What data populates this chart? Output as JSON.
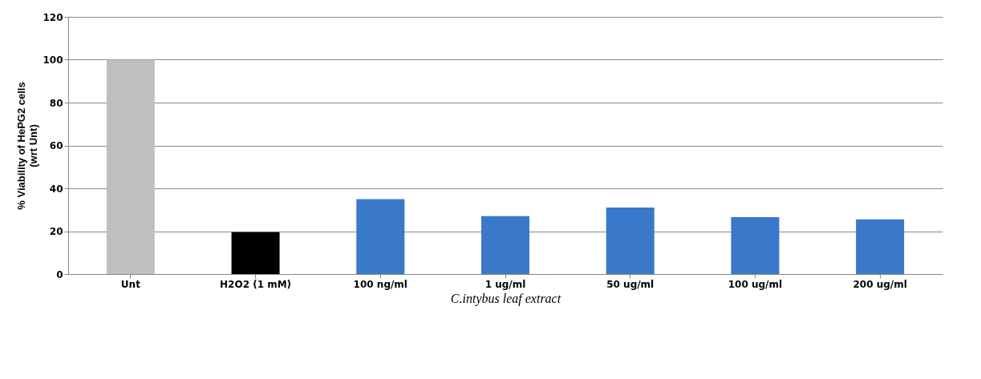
{
  "chart_data": {
    "type": "bar",
    "categories": [
      "Unt",
      "H2O2 (1 mM)",
      "100 ng/ml",
      "1 ug/ml",
      "50 ug/ml",
      "100 ug/ml",
      "200 ug/ml"
    ],
    "values": [
      100,
      19.5,
      35,
      27,
      31,
      26.5,
      25.5
    ],
    "colors": [
      "#bfbfbf",
      "#000000",
      "#3a78c9",
      "#3a78c9",
      "#3a78c9",
      "#3a78c9",
      "#3a78c9"
    ],
    "xlabel": "C.intybus leaf extract",
    "ylabel": "% Viability of HePG2 cells (wrt Unt)",
    "ylim": [
      0,
      120
    ],
    "yticks": [
      0,
      20,
      40,
      60,
      80,
      100,
      120
    ],
    "grid": "y"
  }
}
